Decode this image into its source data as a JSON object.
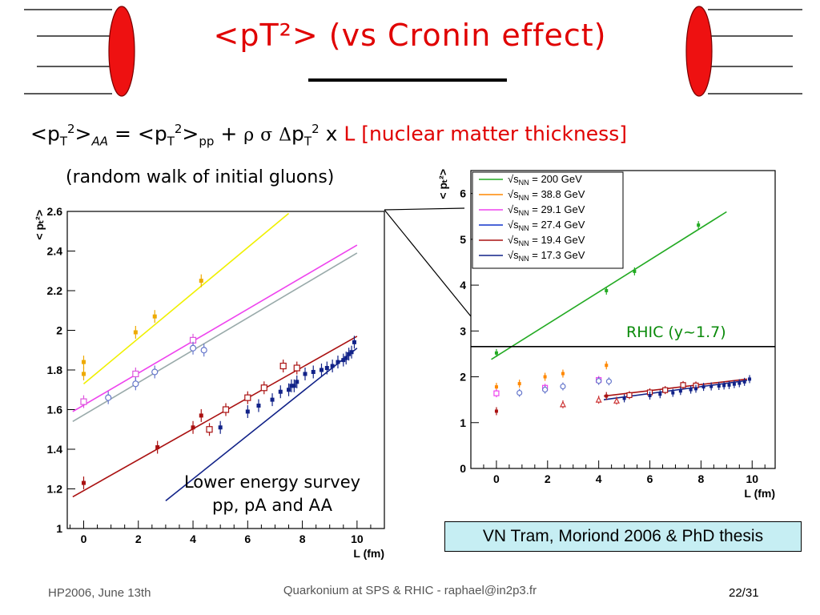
{
  "slide": {
    "title": "<pT²> (vs Cronin effect)",
    "formula": {
      "lhs": "<p",
      "lhs_sub": "T",
      "lhs_sup": "2",
      "lhs_close": ">",
      "lhs_index": "AA",
      "eq": " = <p",
      "rhs_sub": "T",
      "rhs_sup": "2",
      "rhs_close": ">",
      "rhs_index": "pp",
      "plus": " + ",
      "rho": "ρ",
      "sigma": "σ",
      "delta": "Δ",
      "p": "p",
      "delta_sub": "T",
      "delta_sup": "2",
      "times": " x ",
      "L_text": "L [nuclear matter thickness]"
    },
    "subnote": "(random walk of initial gluons)",
    "note": [
      "Lower energy survey",
      "pp, pA and AA"
    ],
    "rhic_label": "RHIC (y~1.7)",
    "reference": "VN Tram, Moriond 2006 & PhD thesis",
    "footer": {
      "left": "HP2006, June 13th",
      "center": "Quarkonium at SPS & RHIC - raphael@in2p3.fr",
      "right": "22/31"
    },
    "colors": {
      "title": "#e00000",
      "rhic": "#0a8a0a",
      "ref_bg": "#c6eef3",
      "ellipse": "#ee1111"
    }
  },
  "chart_data": [
    {
      "type": "scatter",
      "xlabel": "L (fm)",
      "ylabel": "< pₜ²>",
      "xlim": [
        -0.6,
        11.0
      ],
      "ylim": [
        1.0,
        2.6
      ],
      "xticks": [
        "0",
        "2",
        "4",
        "6",
        "8",
        "10"
      ],
      "yticks": [
        "1",
        "1.2",
        "1.4",
        "1.6",
        "1.8",
        "2",
        "2.2",
        "2.4",
        "2.6"
      ],
      "lines": [
        {
          "color": "#f0f000",
          "x": [
            0,
            7.5
          ],
          "y": [
            1.73,
            2.59
          ]
        },
        {
          "color": "#ee44ee",
          "x": [
            -0.4,
            10.0
          ],
          "y": [
            1.59,
            2.43
          ]
        },
        {
          "color": "#99aaaa",
          "x": [
            -0.4,
            10.0
          ],
          "y": [
            1.54,
            2.39
          ]
        },
        {
          "color": "#aa1111",
          "x": [
            -0.4,
            10.0
          ],
          "y": [
            1.16,
            1.97
          ]
        },
        {
          "color": "#112288",
          "x": [
            3.0,
            10.0
          ],
          "y": [
            1.14,
            1.91
          ]
        }
      ],
      "series": [
        {
          "color": "#eeaa00",
          "marker": "filled",
          "x": [
            0.0,
            0.0,
            1.9,
            2.6,
            4.3
          ],
          "y": [
            1.78,
            1.84,
            1.99,
            2.07,
            2.25
          ]
        },
        {
          "color": "#dd55dd",
          "marker": "open-square",
          "x": [
            0.0,
            1.9,
            4.0
          ],
          "y": [
            1.64,
            1.78,
            1.95
          ]
        },
        {
          "color": "#6677cc",
          "marker": "open-circle",
          "x": [
            0.9,
            1.9,
            2.6,
            4.0,
            4.4
          ],
          "y": [
            1.66,
            1.73,
            1.79,
            1.91,
            1.9
          ]
        },
        {
          "color": "#aa1111",
          "marker": "filled",
          "x": [
            0.0,
            2.7,
            4.0,
            4.3
          ],
          "y": [
            1.23,
            1.41,
            1.51,
            1.57
          ]
        },
        {
          "color": "#aa1111",
          "marker": "open-square",
          "x": [
            4.6,
            5.2,
            6.0,
            6.6,
            7.3,
            7.8
          ],
          "y": [
            1.5,
            1.6,
            1.66,
            1.71,
            1.82,
            1.81
          ]
        },
        {
          "color": "#112288",
          "marker": "filled",
          "x": [
            5.0,
            6.0,
            6.4,
            6.9,
            7.2,
            7.5,
            7.6,
            7.7,
            7.8,
            8.1,
            8.4,
            8.7,
            8.9,
            9.1,
            9.3,
            9.5,
            9.6,
            9.7,
            9.8,
            9.9
          ],
          "y": [
            1.51,
            1.59,
            1.62,
            1.65,
            1.69,
            1.7,
            1.72,
            1.72,
            1.74,
            1.78,
            1.79,
            1.8,
            1.81,
            1.82,
            1.84,
            1.85,
            1.86,
            1.88,
            1.89,
            1.94
          ]
        }
      ]
    },
    {
      "type": "scatter",
      "xlabel": "L (fm)",
      "ylabel": "< pₜ²>",
      "xlim": [
        -1.0,
        10.9
      ],
      "ylim": [
        0,
        6.5
      ],
      "xticks": [
        "0",
        "2",
        "4",
        "6",
        "8",
        "10"
      ],
      "yticks": [
        "0",
        "1",
        "2",
        "3",
        "4",
        "5",
        "6"
      ],
      "legend_position": "top-left",
      "legend": [
        {
          "color": "#22aa22",
          "prefix": "√",
          "s": "s",
          "sub": "NN",
          "label": " = 200 GeV"
        },
        {
          "color": "#ff8800",
          "prefix": "√",
          "s": "s",
          "sub": "NN",
          "label": " = 38.8 GeV"
        },
        {
          "color": "#ee44ee",
          "prefix": "√",
          "s": "s",
          "sub": "NN",
          "label": " = 29.1 GeV"
        },
        {
          "color": "#1133cc",
          "prefix": "√",
          "s": "s",
          "sub": "NN",
          "label": " = 27.4 GeV"
        },
        {
          "color": "#aa1111",
          "prefix": "√",
          "s": "s",
          "sub": "NN",
          "label": " =  19.4 GeV"
        },
        {
          "color": "#112288",
          "prefix": "√",
          "s": "s",
          "sub": "NN",
          "label": " =  17.3 GeV"
        }
      ],
      "lines": [
        {
          "color": "#22aa22",
          "x": [
            -0.2,
            9.0
          ],
          "y": [
            2.38,
            5.6
          ]
        },
        {
          "color": "#000000",
          "x": [
            -1.0,
            10.9
          ],
          "y": [
            2.66,
            2.66
          ]
        },
        {
          "color": "#aa1111",
          "x": [
            4.2,
            9.8
          ],
          "y": [
            1.58,
            1.95
          ]
        },
        {
          "color": "#112288",
          "x": [
            4.2,
            9.8
          ],
          "y": [
            1.5,
            1.92
          ]
        }
      ],
      "series": [
        {
          "color": "#22aa22",
          "marker": "filled",
          "x": [
            0.0,
            4.3,
            5.4,
            7.9
          ],
          "y": [
            2.52,
            3.88,
            4.3,
            5.31
          ]
        },
        {
          "color": "#ff8800",
          "marker": "filled",
          "x": [
            0.0,
            0.9,
            1.9,
            2.6,
            4.3
          ],
          "y": [
            1.78,
            1.85,
            2.0,
            2.07,
            2.25
          ]
        },
        {
          "color": "#ee44ee",
          "marker": "open-square",
          "x": [
            0.0,
            1.9,
            4.0
          ],
          "y": [
            1.64,
            1.76,
            1.93
          ]
        },
        {
          "color": "#6677cc",
          "marker": "open-circle",
          "x": [
            0.9,
            1.9,
            2.6,
            4.0,
            4.4
          ],
          "y": [
            1.65,
            1.72,
            1.79,
            1.91,
            1.9
          ]
        },
        {
          "color": "#cc3333",
          "marker": "open-triangle",
          "x": [
            2.6,
            4.0,
            4.7
          ],
          "y": [
            1.4,
            1.5,
            1.48
          ]
        },
        {
          "color": "#aa1111",
          "marker": "filled",
          "x": [
            0.0,
            4.3
          ],
          "y": [
            1.25,
            1.58
          ]
        },
        {
          "color": "#aa1111",
          "marker": "open-square",
          "x": [
            5.2,
            6.0,
            6.6,
            7.3,
            7.8
          ],
          "y": [
            1.6,
            1.66,
            1.71,
            1.82,
            1.81
          ]
        },
        {
          "color": "#112288",
          "marker": "filled",
          "x": [
            5.0,
            6.0,
            6.4,
            6.9,
            7.2,
            7.6,
            7.8,
            8.1,
            8.4,
            8.7,
            8.9,
            9.1,
            9.3,
            9.5,
            9.7,
            9.9
          ],
          "y": [
            1.53,
            1.59,
            1.62,
            1.65,
            1.69,
            1.72,
            1.74,
            1.78,
            1.79,
            1.8,
            1.81,
            1.82,
            1.84,
            1.86,
            1.89,
            1.95
          ]
        }
      ]
    }
  ]
}
